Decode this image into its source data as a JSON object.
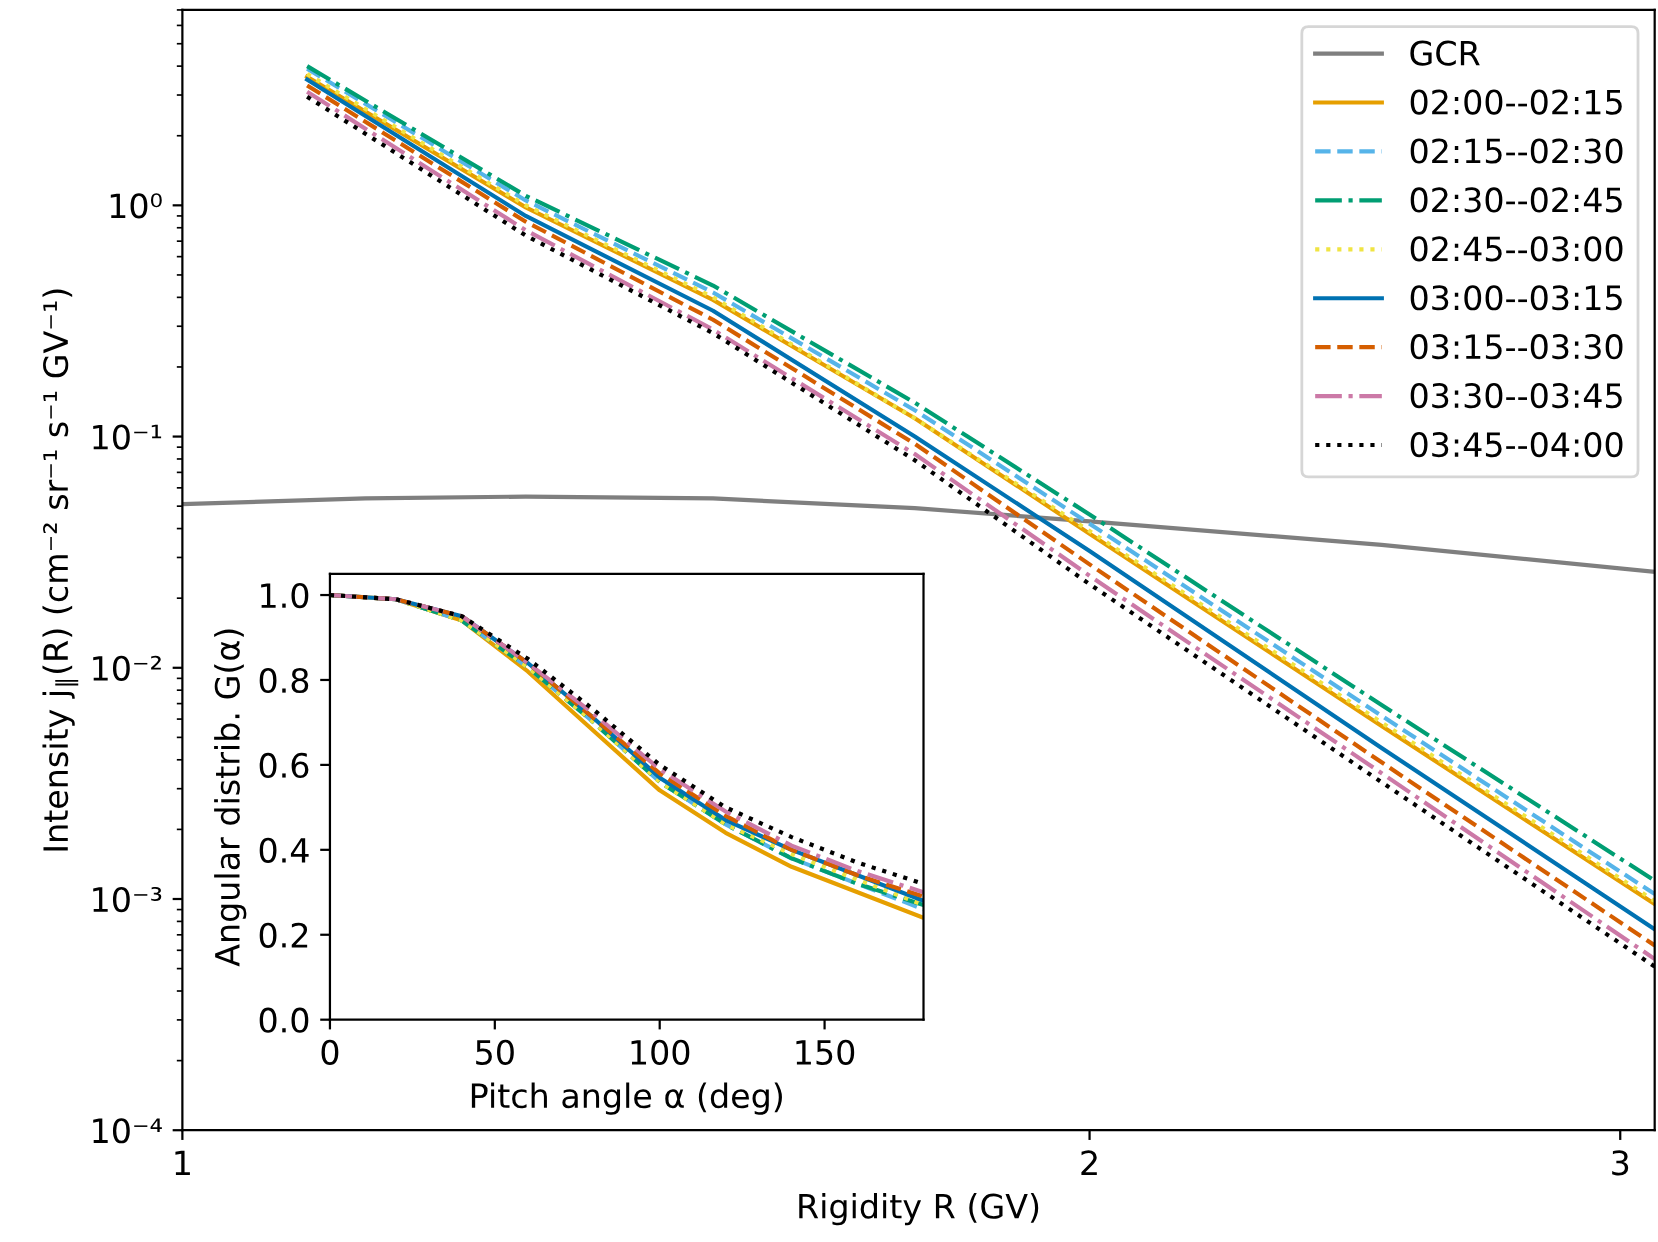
{
  "chart_data": [
    {
      "type": "line",
      "xlabel": "Rigidity R (GV)",
      "ylabel": "Intensity j$_{∥}$(R) (cm⁻² sr⁻¹ s⁻¹ GV⁻¹)",
      "log": "xy",
      "xlim": [
        1,
        3.08
      ],
      "ylim": [
        0.0001,
        7
      ],
      "xticks": [
        1,
        2,
        3
      ],
      "yticks": [
        {
          "value": 0.0001,
          "label": "10⁻⁴"
        },
        {
          "value": 0.001,
          "label": "10⁻³"
        },
        {
          "value": 0.01,
          "label": "10⁻²"
        },
        {
          "value": 0.1,
          "label": "10⁻¹"
        },
        {
          "value": 1,
          "label": "10⁰"
        }
      ],
      "grid": false,
      "legend": "top right",
      "series": [
        {
          "name": "GCR",
          "color": "#7f7f7f",
          "line_style": "solid",
          "x": [
            1,
            1.15,
            1.3,
            1.5,
            1.75,
            2,
            2.5,
            3.08
          ],
          "values": [
            0.051,
            0.054,
            0.055,
            0.054,
            0.049,
            0.043,
            0.034,
            0.026
          ]
        },
        {
          "name": "02:00--02:15",
          "color": "#e69f00",
          "line_style": "solid",
          "x": [
            1.1,
            1.3,
            1.5,
            1.75,
            2,
            2.5,
            3.08
          ],
          "values": [
            3.6,
            0.98,
            0.39,
            0.12,
            0.038,
            0.0056,
            0.00095
          ]
        },
        {
          "name": "02:15--02:30",
          "color": "#56b4e9",
          "line_style": "dashed",
          "x": [
            1.1,
            1.3,
            1.5,
            1.75,
            2,
            2.5,
            3.08
          ],
          "values": [
            3.9,
            1.05,
            0.42,
            0.13,
            0.042,
            0.0062,
            0.00105
          ]
        },
        {
          "name": "02:30--02:45",
          "color": "#009e73",
          "line_style": "dashdot",
          "x": [
            1.1,
            1.3,
            1.5,
            1.75,
            2,
            2.5,
            3.08
          ],
          "values": [
            4.0,
            1.1,
            0.45,
            0.14,
            0.046,
            0.0069,
            0.0012
          ]
        },
        {
          "name": "02:45--03:00",
          "color": "#f0e442",
          "line_style": "dotted",
          "x": [
            1.1,
            1.3,
            1.5,
            1.75,
            2,
            2.5,
            3.08
          ],
          "values": [
            3.7,
            1.0,
            0.4,
            0.12,
            0.039,
            0.0058,
            0.00098
          ]
        },
        {
          "name": "03:00--03:15",
          "color": "#0072b2",
          "line_style": "solid",
          "x": [
            1.1,
            1.3,
            1.5,
            1.75,
            2,
            2.5,
            3.08
          ],
          "values": [
            3.5,
            0.9,
            0.35,
            0.1,
            0.032,
            0.0045,
            0.00074
          ]
        },
        {
          "name": "03:15--03:30",
          "color": "#d55e00",
          "line_style": "dashed",
          "x": [
            1.1,
            1.3,
            1.5,
            1.75,
            2,
            2.5,
            3.08
          ],
          "values": [
            3.3,
            0.85,
            0.32,
            0.093,
            0.028,
            0.0039,
            0.00063
          ]
        },
        {
          "name": "03:30--03:45",
          "color": "#cc79a7",
          "line_style": "dashdot",
          "x": [
            1.1,
            1.3,
            1.5,
            1.75,
            2,
            2.5,
            3.08
          ],
          "values": [
            3.1,
            0.78,
            0.29,
            0.084,
            0.025,
            0.0035,
            0.00055
          ]
        },
        {
          "name": "03:45--04:00",
          "color": "#000000",
          "line_style": "dotted",
          "x": [
            1.1,
            1.3,
            1.5,
            1.75,
            2,
            2.5,
            3.08
          ],
          "values": [
            2.95,
            0.74,
            0.28,
            0.079,
            0.023,
            0.0032,
            0.00051
          ]
        }
      ]
    },
    {
      "type": "line",
      "xlabel": "Pitch angle α (deg)",
      "ylabel": "Angular distrib. G(α)",
      "x": [
        0,
        20,
        40,
        60,
        80,
        100,
        120,
        140,
        160,
        180
      ],
      "xlim": [
        0,
        180
      ],
      "ylim": [
        0,
        1.05
      ],
      "xticks": [
        0,
        50,
        100,
        150
      ],
      "yticks": [
        {
          "value": 0,
          "label": "0.0"
        },
        {
          "value": 0.2,
          "label": "0.2"
        },
        {
          "value": 0.4,
          "label": "0.4"
        },
        {
          "value": 0.6,
          "label": "0.6"
        },
        {
          "value": 0.8,
          "label": "0.8"
        },
        {
          "value": 1,
          "label": "1.0"
        }
      ],
      "grid": false,
      "series": [
        {
          "color": "#e69f00",
          "line_style": "solid",
          "values": [
            1.0,
            0.99,
            0.94,
            0.82,
            0.68,
            0.54,
            0.44,
            0.36,
            0.3,
            0.24
          ]
        },
        {
          "color": "#56b4e9",
          "line_style": "dashed",
          "values": [
            1.0,
            0.99,
            0.94,
            0.83,
            0.7,
            0.56,
            0.46,
            0.38,
            0.32,
            0.26
          ]
        },
        {
          "color": "#009e73",
          "line_style": "dashdot",
          "values": [
            1.0,
            0.99,
            0.94,
            0.83,
            0.7,
            0.56,
            0.46,
            0.38,
            0.32,
            0.27
          ]
        },
        {
          "color": "#f0e442",
          "line_style": "dotted",
          "values": [
            1.0,
            0.99,
            0.94,
            0.83,
            0.7,
            0.56,
            0.46,
            0.39,
            0.33,
            0.27
          ]
        },
        {
          "color": "#0072b2",
          "line_style": "solid",
          "values": [
            1.0,
            0.99,
            0.95,
            0.84,
            0.71,
            0.57,
            0.47,
            0.4,
            0.34,
            0.28
          ]
        },
        {
          "color": "#d55e00",
          "line_style": "dashed",
          "values": [
            1.0,
            0.99,
            0.95,
            0.84,
            0.71,
            0.58,
            0.48,
            0.4,
            0.34,
            0.29
          ]
        },
        {
          "color": "#cc79a7",
          "line_style": "dashdot",
          "values": [
            1.0,
            0.99,
            0.95,
            0.84,
            0.72,
            0.59,
            0.49,
            0.41,
            0.35,
            0.3
          ]
        },
        {
          "color": "#000000",
          "line_style": "dotted",
          "values": [
            1.0,
            0.99,
            0.95,
            0.85,
            0.73,
            0.6,
            0.5,
            0.43,
            0.37,
            0.32
          ]
        }
      ]
    }
  ]
}
